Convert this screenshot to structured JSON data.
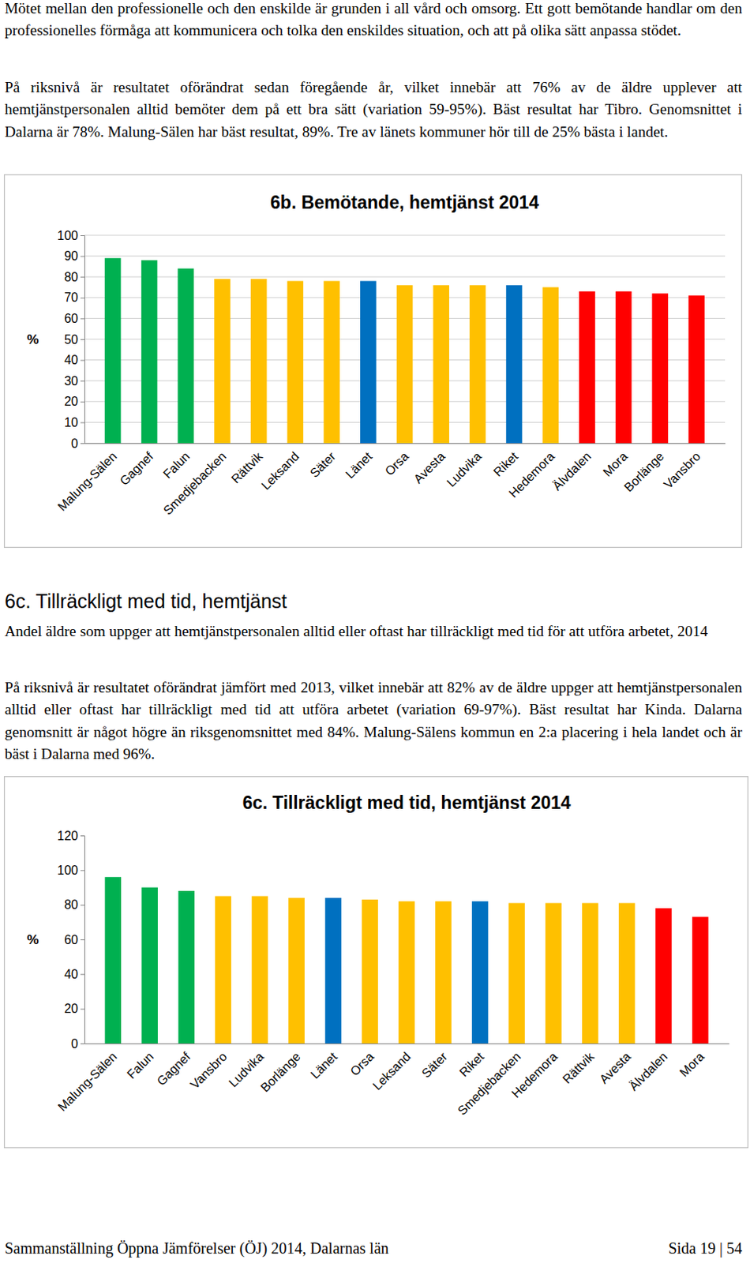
{
  "paragraphs": [
    "Mötet mellan den professionelle och den enskilde är grunden i all vård och omsorg. Ett gott bemötande handlar om den professionelles förmåga att kommunicera och tolka den enskildes situation, och att på olika sätt anpassa stödet.",
    "På riksnivå är resultatet oförändrat sedan föregående år, vilket innebär att 76% av de äldre upplever att hemtjänstpersonalen alltid bemöter dem på ett bra sätt (variation 59-95%). Bäst resultat har Tibro. Genomsnittet i Dalarna är 78%. Malung-Sälen har bäst resultat, 89%. Tre av länets kommuner hör till de 25% bästa i landet."
  ],
  "heading": "6c. Tillräckligt med tid, hemtjänst",
  "subheading": "Andel äldre som uppger att hemtjänstpersonalen alltid eller oftast har tillräckligt med tid för att utföra arbetet, 2014",
  "paragraph_6c": "På riksnivå är resultatet oförändrat jämfört med 2013, vilket innebär att 82% av de äldre uppger att hemtjänstpersonalen alltid eller oftast har tillräckligt med tid att utföra arbetet (variation 69-97%). Bäst resultat har Kinda. Dalarna genomsnitt är något högre än riksgenomsnittet med 84%. Malung-Sälens kommun en 2:a placering i hela landet och är bäst i Dalarna med 96%.",
  "chart_data": [
    {
      "type": "bar",
      "title": "6b. Bemötande, hemtjänst 2014",
      "y_label": "%",
      "categories": [
        "Malung-Sälen",
        "Gagnef",
        "Falun",
        "Smedjebacken",
        "Rättvik",
        "Leksand",
        "Säter",
        "Länet",
        "Orsa",
        "Avesta",
        "Ludvika",
        "Riket",
        "Hedemora",
        "Älvdalen",
        "Mora",
        "Borlänge",
        "Vansbro"
      ],
      "values": [
        89,
        88,
        84,
        79,
        79,
        78,
        78,
        78,
        76,
        76,
        76,
        76,
        75,
        73,
        73,
        72,
        71
      ],
      "colors": [
        "#00b050",
        "#00b050",
        "#00b050",
        "#ffc000",
        "#ffc000",
        "#ffc000",
        "#ffc000",
        "#0070c0",
        "#ffc000",
        "#ffc000",
        "#ffc000",
        "#0070c0",
        "#ffc000",
        "#ff0000",
        "#ff0000",
        "#ff0000",
        "#ff0000"
      ],
      "ylim": [
        0,
        100
      ],
      "yticks": [
        0,
        10,
        20,
        30,
        40,
        50,
        60,
        70,
        80,
        90,
        100
      ],
      "grid": true
    },
    {
      "type": "bar",
      "title": "6c. Tillräckligt med tid, hemtjänst 2014",
      "y_label": "%",
      "categories": [
        "Malung-Sälen",
        "Falun",
        "Gagnef",
        "Vansbro",
        "Ludvika",
        "Borlänge",
        "Länet",
        "Orsa",
        "Leksand",
        "Säter",
        "Riket",
        "Smedjebacken",
        "Hedemora",
        "Rättvik",
        "Avesta",
        "Älvdalen",
        "Mora"
      ],
      "values": [
        96,
        90,
        88,
        85,
        85,
        84,
        84,
        83,
        82,
        82,
        82,
        81,
        81,
        81,
        81,
        78,
        73
      ],
      "colors": [
        "#00b050",
        "#00b050",
        "#00b050",
        "#ffc000",
        "#ffc000",
        "#ffc000",
        "#0070c0",
        "#ffc000",
        "#ffc000",
        "#ffc000",
        "#0070c0",
        "#ffc000",
        "#ffc000",
        "#ffc000",
        "#ffc000",
        "#ff0000",
        "#ff0000"
      ],
      "ylim": [
        0,
        120
      ],
      "yticks": [
        0,
        20,
        40,
        60,
        80,
        100,
        120
      ],
      "grid": false
    }
  ],
  "footer": {
    "left": "Sammanställning Öppna Jämförelser (ÖJ) 2014, Dalarnas län",
    "right": "Sida 19 | 54"
  }
}
